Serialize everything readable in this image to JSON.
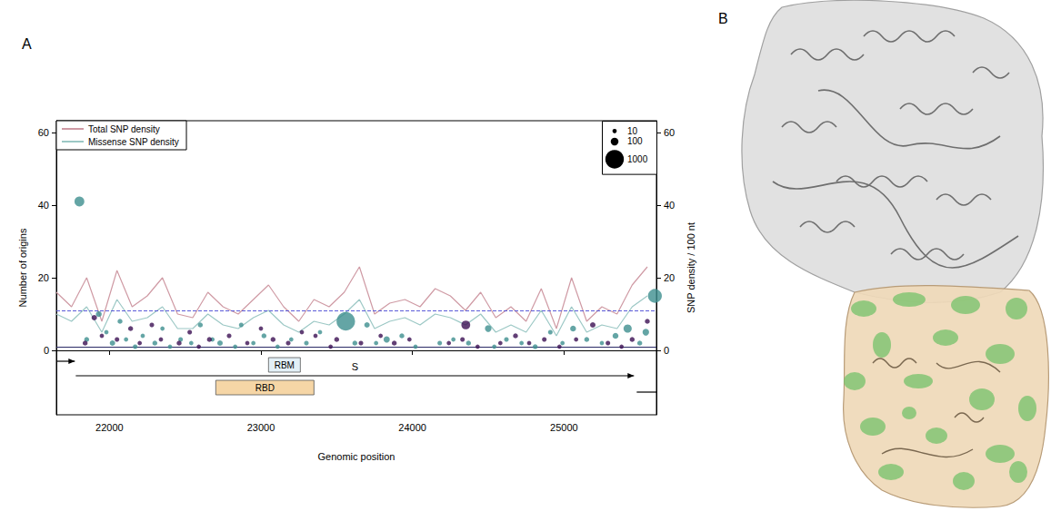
{
  "chart_data": {
    "type": "scatter",
    "panel": "A",
    "x_label": "Genomic position",
    "y_label": "Number of origins",
    "y2_label": "SNP density / 100 nt",
    "xlim": [
      21650,
      25610
    ],
    "xticks": [
      22000,
      23000,
      24000,
      25000
    ],
    "ylim": [
      -17.75,
      63.25
    ],
    "yticks": [
      0,
      20,
      40,
      60
    ],
    "y2lim": [
      -17.75,
      63.25
    ],
    "y2ticks": [
      0,
      20,
      40,
      60
    ],
    "grid": false,
    "legend": "top-left",
    "size_legend": [
      10,
      100,
      1000
    ],
    "series": [
      {
        "type": "scatter",
        "color": "#3d8f8e",
        "marker": "circle",
        "x": [
          21802,
          21850,
          21930,
          21980,
          22020,
          22070,
          22110,
          22170,
          22220,
          22300,
          22350,
          22400,
          22470,
          22540,
          22600,
          22680,
          22730,
          22830,
          22870,
          22950,
          23020,
          23110,
          23200,
          23300,
          23390,
          23560,
          23620,
          23700,
          23760,
          23830,
          23930,
          24020,
          24180,
          24270,
          24370,
          24500,
          24540,
          24620,
          24720,
          24810,
          24910,
          24990,
          25060,
          25150,
          25250,
          25340,
          25420,
          25500,
          25540,
          25600
        ],
        "values": [
          41,
          3,
          10,
          5,
          2,
          8,
          3,
          1,
          4,
          2,
          6,
          1,
          3,
          2,
          7,
          3,
          2,
          1,
          7,
          2,
          4,
          1,
          3,
          2,
          5,
          8,
          2,
          7,
          2,
          3,
          4,
          1,
          2,
          3,
          2,
          6,
          1,
          3,
          2,
          1,
          5,
          2,
          6,
          3,
          2,
          4,
          6,
          2,
          5,
          15
        ],
        "sizes": [
          200,
          20,
          40,
          10,
          30,
          20,
          10,
          15,
          10,
          20,
          10,
          10,
          15,
          10,
          20,
          10,
          30,
          10,
          15,
          10,
          20,
          10,
          10,
          15,
          10,
          1000,
          20,
          30,
          10,
          50,
          20,
          10,
          15,
          10,
          20,
          60,
          10,
          15,
          10,
          20,
          15,
          10,
          40,
          20,
          10,
          40,
          120,
          20,
          60,
          500
        ]
      },
      {
        "type": "scatter",
        "color": "#3b0f52",
        "marker": "circle",
        "x": [
          21840,
          21900,
          21950,
          22050,
          22140,
          22200,
          22280,
          22340,
          22460,
          22530,
          22590,
          22660,
          22790,
          22910,
          23000,
          23080,
          23180,
          23270,
          23360,
          23460,
          23500,
          23660,
          23790,
          23880,
          23980,
          24240,
          24330,
          24352,
          24430,
          24580,
          24680,
          24770,
          24870,
          24970,
          25080,
          25190,
          25290,
          25380,
          25450,
          25550
        ],
        "values": [
          2,
          9,
          4,
          3,
          6,
          2,
          7,
          3,
          2,
          5,
          1,
          3,
          4,
          2,
          6,
          3,
          2,
          5,
          4,
          1,
          3,
          2,
          4,
          2,
          3,
          2,
          3,
          7,
          1,
          2,
          4,
          2,
          3,
          1,
          3,
          7,
          2,
          1,
          3,
          8
        ],
        "sizes": [
          20,
          30,
          10,
          15,
          20,
          10,
          15,
          10,
          20,
          15,
          10,
          20,
          15,
          10,
          10,
          20,
          15,
          10,
          10,
          10,
          20,
          15,
          10,
          20,
          10,
          10,
          15,
          150,
          10,
          10,
          20,
          10,
          15,
          10,
          10,
          30,
          15,
          10,
          20,
          20
        ]
      },
      {
        "type": "line",
        "name": "Total SNP density",
        "color": "#cf9aa4",
        "axis": "y2",
        "line_style": "solid",
        "x": [
          21650,
          21750,
          21850,
          21950,
          22050,
          22150,
          22250,
          22350,
          22450,
          22550,
          22650,
          22750,
          22850,
          22950,
          23050,
          23150,
          23250,
          23350,
          23450,
          23550,
          23650,
          23750,
          23850,
          23950,
          24050,
          24150,
          24250,
          24350,
          24450,
          24550,
          24650,
          24750,
          24850,
          24950,
          25050,
          25150,
          25250,
          25350,
          25450,
          25550
        ],
        "values": [
          16,
          12,
          20,
          8,
          22,
          12,
          15,
          20,
          10,
          9,
          16,
          12,
          10,
          14,
          18,
          12,
          8,
          14,
          12,
          16,
          23,
          10,
          13,
          14,
          12,
          17,
          15,
          11,
          16,
          9,
          12,
          8,
          17,
          6,
          20,
          8,
          12,
          10,
          18,
          23
        ]
      },
      {
        "type": "line",
        "name": "Missense SNP density",
        "color": "#9cc8c5",
        "axis": "y2",
        "line_style": "solid",
        "x": [
          21650,
          21750,
          21850,
          21950,
          22050,
          22150,
          22250,
          22350,
          22450,
          22550,
          22650,
          22750,
          22850,
          22950,
          23050,
          23150,
          23250,
          23350,
          23450,
          23550,
          23650,
          23750,
          23850,
          23950,
          24050,
          24150,
          24250,
          24350,
          24450,
          24550,
          24650,
          24750,
          24850,
          24950,
          25050,
          25150,
          25250,
          25350,
          25450,
          25550
        ],
        "values": [
          10,
          8,
          12,
          5,
          14,
          8,
          9,
          12,
          6,
          6,
          10,
          7,
          6,
          9,
          11,
          7,
          5,
          8,
          7,
          10,
          14,
          6,
          8,
          9,
          7,
          10,
          9,
          7,
          10,
          5,
          7,
          5,
          11,
          4,
          12,
          5,
          7,
          6,
          12,
          15
        ]
      }
    ],
    "reference_lines": [
      {
        "value": 11,
        "color": "#5a5ad8",
        "line_style": "dashed"
      },
      {
        "value": 1,
        "color": "#2a2a66",
        "line_style": "solid"
      }
    ],
    "features": [
      {
        "label": "RBD",
        "start": 22702,
        "end": 23350,
        "y": -10.25,
        "color": "#f6d6a6"
      },
      {
        "label": "RBM",
        "start": 23050,
        "end": 23260,
        "y": -4,
        "color": "#e3f0f7"
      }
    ],
    "arrows": [
      {
        "label": "S",
        "start": 21778,
        "end": 25462,
        "y": -7,
        "marker": "arrow"
      },
      {
        "start": 21650,
        "end": 21772,
        "y": -3,
        "marker": "arrow"
      },
      {
        "start": 25480,
        "end": 25610,
        "y": -11.5,
        "marker": "none"
      }
    ]
  },
  "structure_panel": {
    "panel": "B"
  }
}
